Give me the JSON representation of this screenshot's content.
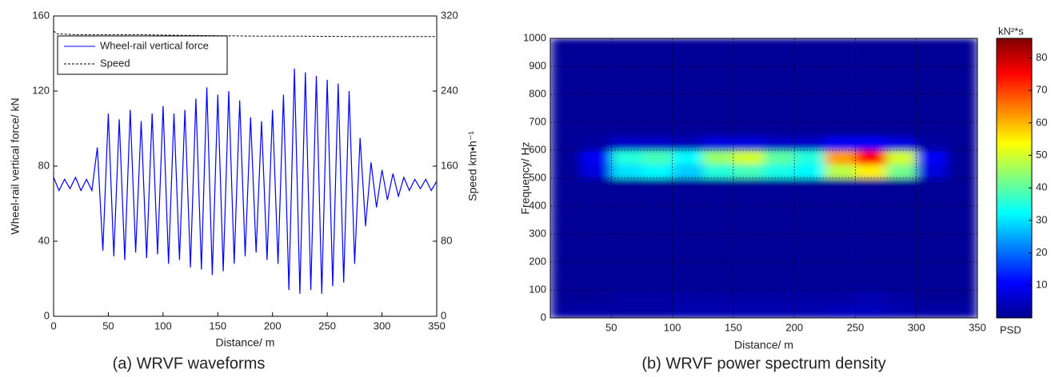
{
  "chart_data": [
    {
      "type": "line",
      "caption": "(a) WRVF waveforms",
      "xlabel": "Distance/ m",
      "ylabel": "Wheel-rail vertical force/ kN",
      "y2label": "Speed km•h⁻¹",
      "xlim": [
        0,
        350
      ],
      "xticks": [
        0,
        50,
        100,
        150,
        200,
        250,
        300,
        350
      ],
      "ylim": [
        0,
        160
      ],
      "yticks": [
        0,
        40,
        80,
        120,
        160
      ],
      "y2lim": [
        0,
        320
      ],
      "y2ticks": [
        0,
        80,
        160,
        240,
        320
      ],
      "legend": "upper left",
      "series": [
        {
          "name": "Wheel-rail vertical force",
          "color": "#0000ff",
          "style": "solid",
          "x": [
            0,
            5,
            10,
            15,
            20,
            25,
            30,
            35,
            40,
            45,
            50,
            55,
            60,
            65,
            70,
            75,
            80,
            85,
            90,
            95,
            100,
            105,
            110,
            115,
            120,
            125,
            130,
            135,
            140,
            145,
            150,
            155,
            160,
            165,
            170,
            175,
            180,
            185,
            190,
            195,
            200,
            205,
            210,
            215,
            220,
            225,
            230,
            235,
            240,
            245,
            250,
            255,
            260,
            265,
            270,
            275,
            280,
            285,
            290,
            295,
            300,
            305,
            310,
            315,
            320,
            325,
            330,
            335,
            340,
            345,
            350
          ],
          "values": [
            74,
            67,
            73,
            68,
            74,
            67,
            73,
            67,
            90,
            35,
            108,
            32,
            105,
            30,
            110,
            34,
            104,
            31,
            108,
            33,
            112,
            28,
            108,
            30,
            110,
            26,
            116,
            25,
            122,
            22,
            118,
            24,
            120,
            28,
            115,
            32,
            106,
            34,
            104,
            30,
            110,
            28,
            118,
            14,
            132,
            12,
            130,
            14,
            128,
            12,
            126,
            16,
            124,
            18,
            120,
            28,
            95,
            48,
            82,
            58,
            78,
            62,
            76,
            64,
            74,
            67,
            73,
            68,
            73,
            67,
            72
          ]
        },
        {
          "name": "Speed",
          "color": "#000000",
          "style": "dashed",
          "axis": "y2",
          "x": [
            0,
            3,
            20,
            80,
            110,
            150,
            190,
            230,
            280,
            350
          ],
          "values": [
            304,
            301,
            300,
            300,
            299.5,
            299,
            298.5,
            298.5,
            298,
            298
          ]
        }
      ]
    },
    {
      "type": "heatmap",
      "caption": "(b) WRVF power spectrum density",
      "xlabel": "Distance/ m",
      "ylabel": "Frequency/ Hz",
      "xlim": [
        0,
        350
      ],
      "xticks": [
        50,
        100,
        150,
        200,
        250,
        300,
        350
      ],
      "ylim": [
        0,
        1000
      ],
      "yticks": [
        0,
        100,
        200,
        300,
        400,
        500,
        600,
        700,
        800,
        900,
        1000
      ],
      "grid": true,
      "colormap": "jet",
      "x": [
        0,
        25,
        50,
        75,
        100,
        125,
        150,
        175,
        200,
        225,
        250,
        275,
        300,
        325,
        350
      ],
      "y": [
        0,
        50,
        100,
        150,
        200,
        250,
        300,
        350,
        400,
        450,
        500,
        550,
        600,
        650,
        700,
        750,
        800,
        850,
        900,
        950,
        1000
      ],
      "z": [
        [
          3,
          3,
          3,
          3,
          4,
          4,
          4,
          4,
          4,
          5,
          5,
          4,
          3,
          3
        ],
        [
          2,
          2,
          3,
          3,
          3,
          3,
          3,
          3,
          3,
          3,
          4,
          3,
          2,
          2
        ],
        [
          2,
          2,
          2,
          2,
          2,
          2,
          2,
          2,
          2,
          2,
          2,
          2,
          2,
          2
        ],
        [
          2,
          2,
          2,
          2,
          2,
          2,
          2,
          2,
          2,
          2,
          2,
          2,
          2,
          2
        ],
        [
          2,
          2,
          2,
          2,
          2,
          2,
          2,
          2,
          2,
          2,
          2,
          2,
          2,
          2
        ],
        [
          2,
          2,
          2,
          2,
          2,
          2,
          2,
          2,
          2,
          2,
          2,
          2,
          2,
          2
        ],
        [
          2,
          2,
          2,
          2,
          2,
          2,
          2,
          2,
          2,
          2,
          2,
          2,
          2,
          2
        ],
        [
          2,
          2,
          2,
          2,
          2,
          2,
          2,
          2,
          2,
          2,
          2,
          2,
          2,
          2
        ],
        [
          2,
          2,
          2,
          2,
          2,
          2,
          2,
          2,
          2,
          2,
          2,
          2,
          2,
          2
        ],
        [
          2,
          2,
          2,
          2,
          2,
          2,
          2,
          2,
          2,
          2,
          2,
          2,
          2,
          2
        ],
        [
          2,
          8,
          30,
          32,
          28,
          35,
          38,
          34,
          32,
          48,
          55,
          42,
          8,
          2
        ],
        [
          2,
          10,
          35,
          38,
          32,
          45,
          50,
          40,
          35,
          62,
          75,
          50,
          10,
          2
        ],
        [
          2,
          3,
          6,
          6,
          5,
          8,
          8,
          6,
          6,
          10,
          10,
          8,
          3,
          2
        ],
        [
          2,
          2,
          2,
          2,
          2,
          2,
          2,
          2,
          2,
          2,
          2,
          2,
          2,
          2
        ],
        [
          2,
          2,
          2,
          2,
          2,
          2,
          2,
          2,
          2,
          2,
          2,
          2,
          2,
          2
        ],
        [
          2,
          2,
          2,
          2,
          2,
          2,
          2,
          2,
          2,
          2,
          2,
          2,
          2,
          2
        ],
        [
          2,
          2,
          2,
          2,
          2,
          2,
          2,
          2,
          2,
          2,
          2,
          2,
          2,
          2
        ],
        [
          2,
          2,
          2,
          2,
          2,
          2,
          2,
          2,
          2,
          2,
          2,
          2,
          2,
          2
        ],
        [
          2,
          2,
          2,
          2,
          2,
          2,
          2,
          2,
          2,
          2,
          2,
          2,
          2,
          2
        ],
        [
          2,
          2,
          2,
          2,
          2,
          2,
          2,
          2,
          2,
          2,
          2,
          2,
          2,
          2
        ]
      ],
      "colorbar": {
        "title": "kN²*s",
        "label": "PSD",
        "lim": [
          0,
          86
        ],
        "ticks": [
          10,
          20,
          30,
          40,
          50,
          60,
          70,
          80
        ]
      }
    }
  ]
}
